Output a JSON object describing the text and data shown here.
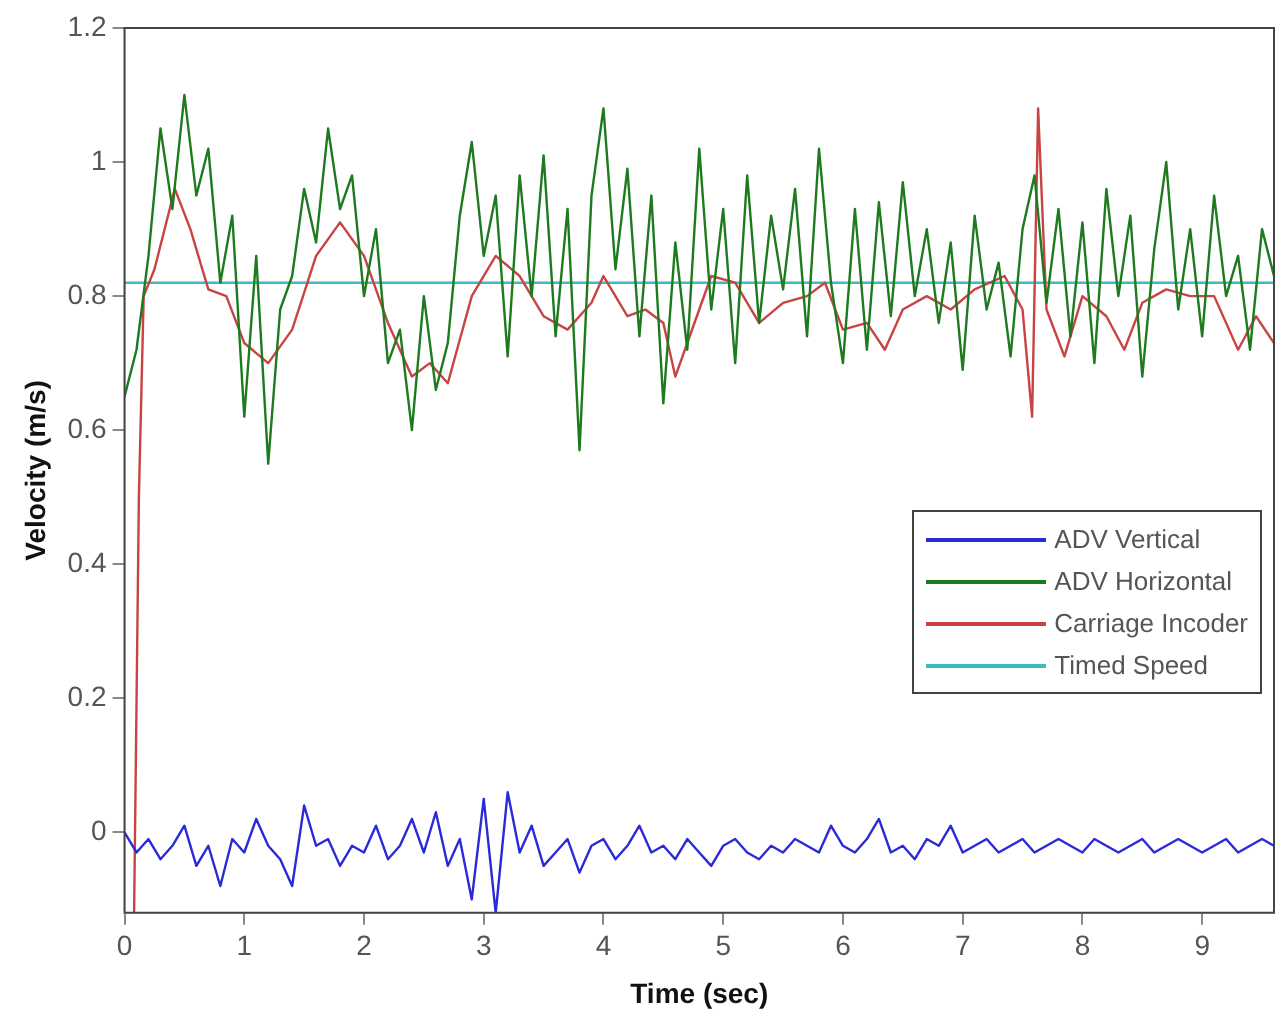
{
  "chart_data": {
    "type": "line",
    "xlabel": "Time (sec)",
    "ylabel": "Velocity (m/s)",
    "xlim": [
      0,
      9.6
    ],
    "xticks": [
      0,
      1,
      2,
      3,
      4,
      5,
      6,
      7,
      8,
      9
    ],
    "ylim": [
      -0.12,
      1.2
    ],
    "yticks": [
      0,
      0.2,
      0.4,
      0.6,
      0.8,
      1,
      1.2
    ],
    "grid": false,
    "legend": "right",
    "marker": "none",
    "line_style": "solid",
    "x": [
      0,
      0.1,
      0.2,
      0.3,
      0.4,
      0.5,
      0.6,
      0.7,
      0.8,
      0.9,
      1,
      1.1,
      1.2,
      1.3,
      1.4,
      1.5,
      1.6,
      1.7,
      1.8,
      1.9,
      2,
      2.1,
      2.2,
      2.3,
      2.4,
      2.5,
      2.6,
      2.7,
      2.8,
      2.9,
      3,
      3.1,
      3.2,
      3.3,
      3.4,
      3.5,
      3.6,
      3.7,
      3.8,
      3.9,
      4,
      4.1,
      4.2,
      4.3,
      4.4,
      4.5,
      4.6,
      4.7,
      4.8,
      4.9,
      5,
      5.1,
      5.2,
      5.3,
      5.4,
      5.5,
      5.6,
      5.7,
      5.8,
      5.9,
      6,
      6.1,
      6.2,
      6.3,
      6.4,
      6.5,
      6.6,
      6.7,
      6.8,
      6.9,
      7,
      7.1,
      7.2,
      7.3,
      7.4,
      7.5,
      7.6,
      7.7,
      7.8,
      7.9,
      8,
      8.1,
      8.2,
      8.3,
      8.4,
      8.5,
      8.6,
      8.7,
      8.8,
      8.9,
      9,
      9.1,
      9.2,
      9.3,
      9.4,
      9.5,
      9.6
    ],
    "series": [
      {
        "name": "ADV Vertical",
        "color": "#2a2ad8",
        "values": [
          0,
          -0.03,
          -0.01,
          -0.04,
          -0.02,
          0.01,
          -0.05,
          -0.02,
          -0.08,
          -0.01,
          -0.03,
          0.02,
          -0.02,
          -0.04,
          -0.08,
          0.04,
          -0.02,
          -0.01,
          -0.05,
          -0.02,
          -0.03,
          0.01,
          -0.04,
          -0.02,
          0.02,
          -0.03,
          0.03,
          -0.05,
          -0.01,
          -0.1,
          0.05,
          -0.12,
          0.06,
          -0.03,
          0.01,
          -0.05,
          -0.03,
          -0.01,
          -0.06,
          -0.02,
          -0.01,
          -0.04,
          -0.02,
          0.01,
          -0.03,
          -0.02,
          -0.04,
          -0.01,
          -0.03,
          -0.05,
          -0.02,
          -0.01,
          -0.03,
          -0.04,
          -0.02,
          -0.03,
          -0.01,
          -0.02,
          -0.03,
          0.01,
          -0.02,
          -0.03,
          -0.01,
          0.02,
          -0.03,
          -0.02,
          -0.04,
          -0.01,
          -0.02,
          0.01,
          -0.03,
          -0.02,
          -0.01,
          -0.03,
          -0.02,
          -0.01,
          -0.03,
          -0.02,
          -0.01,
          -0.02,
          -0.03,
          -0.01,
          -0.02,
          -0.03,
          -0.02,
          -0.01,
          -0.03,
          -0.02,
          -0.01,
          -0.02,
          -0.03,
          -0.02,
          -0.01,
          -0.03,
          -0.02,
          -0.01,
          -0.02
        ]
      },
      {
        "name": "ADV Horizontal",
        "color": "#1e7a1e",
        "values": [
          0.65,
          0.72,
          0.86,
          1.05,
          0.93,
          1.1,
          0.95,
          1.02,
          0.82,
          0.92,
          0.62,
          0.86,
          0.55,
          0.78,
          0.83,
          0.96,
          0.88,
          1.05,
          0.93,
          0.98,
          0.8,
          0.9,
          0.7,
          0.75,
          0.6,
          0.8,
          0.66,
          0.73,
          0.92,
          1.03,
          0.86,
          0.95,
          0.71,
          0.98,
          0.8,
          1.01,
          0.74,
          0.93,
          0.57,
          0.95,
          1.08,
          0.84,
          0.99,
          0.74,
          0.95,
          0.64,
          0.88,
          0.72,
          1.02,
          0.78,
          0.93,
          0.7,
          0.98,
          0.76,
          0.92,
          0.81,
          0.96,
          0.74,
          1.02,
          0.82,
          0.7,
          0.93,
          0.72,
          0.94,
          0.77,
          0.97,
          0.8,
          0.9,
          0.76,
          0.88,
          0.69,
          0.92,
          0.78,
          0.85,
          0.71,
          0.9,
          0.98,
          0.79,
          0.93,
          0.74,
          0.91,
          0.7,
          0.96,
          0.8,
          0.92,
          0.68,
          0.87,
          1,
          0.78,
          0.9,
          0.74,
          0.95,
          0.8,
          0.86,
          0.72,
          0.9,
          0.83
        ]
      },
      {
        "name": "Carriage Incoder",
        "color": "#c84444",
        "x": [
          0.08,
          0.12,
          0.16,
          0.25,
          0.42,
          0.55,
          0.7,
          0.85,
          1,
          1.2,
          1.4,
          1.6,
          1.8,
          2,
          2.2,
          2.4,
          2.55,
          2.7,
          2.9,
          3.1,
          3.3,
          3.5,
          3.7,
          3.9,
          4,
          4.2,
          4.35,
          4.5,
          4.6,
          4.8,
          4.9,
          5.1,
          5.3,
          5.5,
          5.7,
          5.85,
          6,
          6.2,
          6.35,
          6.5,
          6.7,
          6.9,
          7.1,
          7.35,
          7.5,
          7.58,
          7.63,
          7.7,
          7.85,
          8,
          8.2,
          8.35,
          8.5,
          8.7,
          8.9,
          9.1,
          9.3,
          9.45,
          9.6
        ],
        "values": [
          -0.12,
          0.5,
          0.8,
          0.84,
          0.96,
          0.9,
          0.81,
          0.8,
          0.73,
          0.7,
          0.75,
          0.86,
          0.91,
          0.86,
          0.76,
          0.68,
          0.7,
          0.67,
          0.8,
          0.86,
          0.83,
          0.77,
          0.75,
          0.79,
          0.83,
          0.77,
          0.78,
          0.76,
          0.68,
          0.78,
          0.83,
          0.82,
          0.76,
          0.79,
          0.8,
          0.82,
          0.75,
          0.76,
          0.72,
          0.78,
          0.8,
          0.78,
          0.81,
          0.83,
          0.78,
          0.62,
          1.08,
          0.78,
          0.71,
          0.8,
          0.77,
          0.72,
          0.79,
          0.81,
          0.8,
          0.8,
          0.72,
          0.77,
          0.73
        ]
      },
      {
        "name": "Timed Speed",
        "color": "#3cbcbc",
        "x": [
          0,
          9.6
        ],
        "values": [
          0.82,
          0.82
        ]
      }
    ]
  }
}
